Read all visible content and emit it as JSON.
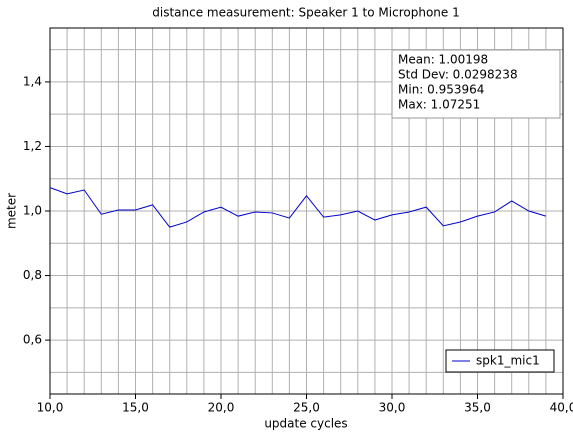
{
  "chart_data": {
    "type": "line",
    "title": "distance measurement: Speaker 1 to Microphone 1",
    "x_label": "update cycles",
    "y_label": "meter",
    "annotations": [
      "Mean: 1.00198",
      "Std Dev: 0.0298238",
      "Min: 0.953964",
      "Max: 1.07251"
    ],
    "x": [
      10,
      11,
      12,
      13,
      14,
      15,
      16,
      17,
      18,
      19,
      20,
      21,
      22,
      23,
      24,
      25,
      26,
      27,
      28,
      29,
      30,
      31,
      32,
      33,
      34,
      35,
      36,
      37,
      38,
      39
    ],
    "series": [
      {
        "name": "spk1_mic1",
        "color": "#0000cc",
        "values": [
          1.0725,
          1.053,
          1.065,
          0.99,
          1.003,
          1.003,
          1.019,
          0.95,
          0.966,
          0.997,
          1.012,
          0.984,
          0.997,
          0.994,
          0.978,
          1.047,
          0.981,
          0.988,
          1.0,
          0.972,
          0.988,
          0.997,
          1.012,
          0.954,
          0.966,
          0.984,
          0.997,
          1.031,
          1.0,
          0.984
        ]
      }
    ],
    "xlim": [
      10,
      40
    ],
    "ylim": [
      0.433,
      1.567
    ],
    "xticks": [
      {
        "value": 10,
        "label": "10,0"
      },
      {
        "value": 15,
        "label": "15,0"
      },
      {
        "value": 20,
        "label": "20,0"
      },
      {
        "value": 25,
        "label": "25,0"
      },
      {
        "value": 30,
        "label": "30,0"
      },
      {
        "value": 35,
        "label": "35,0"
      },
      {
        "value": 40,
        "label": "40,0"
      }
    ],
    "yticks": [
      {
        "value": 0.6,
        "label": "0,6"
      },
      {
        "value": 0.8,
        "label": "0,8"
      },
      {
        "value": 1.0,
        "label": "1,0"
      },
      {
        "value": 1.2,
        "label": "1,2"
      },
      {
        "value": 1.4,
        "label": "1,4"
      }
    ],
    "x_grid": [
      11,
      12,
      13,
      14,
      15,
      16,
      17,
      18,
      19,
      20,
      21,
      22,
      23,
      24,
      25,
      26,
      27,
      28,
      29,
      30,
      31,
      32,
      33,
      34,
      35,
      36,
      37,
      38,
      39
    ],
    "y_grid": [
      0.5,
      0.6,
      0.7,
      0.8,
      0.9,
      1.0,
      1.1,
      1.2,
      1.3,
      1.4,
      1.5
    ],
    "grid": true,
    "legend": "lower right"
  }
}
